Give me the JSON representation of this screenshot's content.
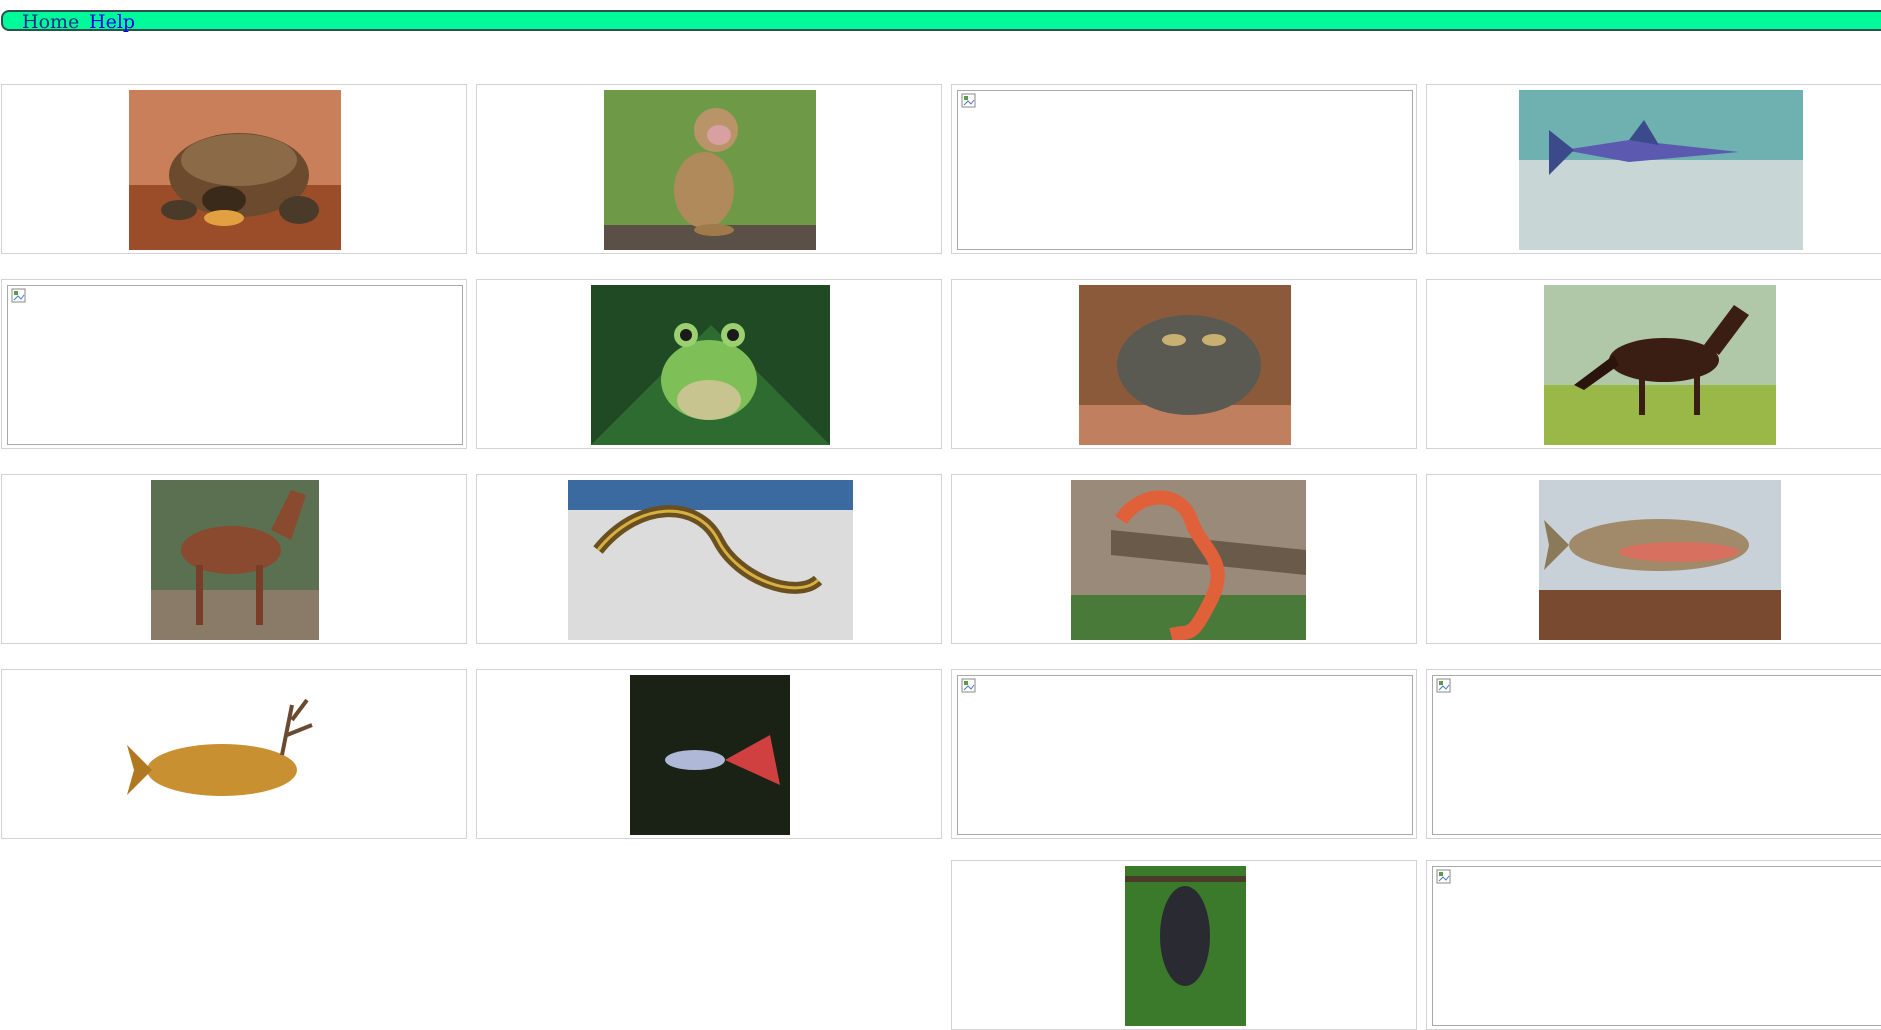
{
  "nav": {
    "home_label": "Home",
    "help_label": "Help",
    "bar_color": "#00fa9a",
    "border_color": "#2f4f4f"
  },
  "gallery": {
    "items": [
      {
        "subject": "tortoise",
        "state": "loaded"
      },
      {
        "subject": "macaque-monkey",
        "state": "loaded"
      },
      {
        "subject": "missing-image",
        "state": "broken"
      },
      {
        "subject": "swordfish",
        "state": "loaded"
      },
      {
        "subject": "missing-image",
        "state": "broken"
      },
      {
        "subject": "green-tree-frog",
        "state": "loaded"
      },
      {
        "subject": "toad",
        "state": "loaded"
      },
      {
        "subject": "brown-horse-galloping",
        "state": "loaded"
      },
      {
        "subject": "brown-horse-standing",
        "state": "loaded"
      },
      {
        "subject": "garter-snake",
        "state": "loaded"
      },
      {
        "subject": "corn-snake",
        "state": "loaded"
      },
      {
        "subject": "cutthroat-trout",
        "state": "loaded"
      },
      {
        "subject": "trout-with-antlers",
        "state": "loaded"
      },
      {
        "subject": "guppy",
        "state": "loaded"
      },
      {
        "subject": "missing-image",
        "state": "broken"
      },
      {
        "subject": "missing-image",
        "state": "broken"
      },
      {
        "subject": "fruit-bat",
        "state": "loaded"
      },
      {
        "subject": "missing-image",
        "state": "broken"
      }
    ]
  }
}
